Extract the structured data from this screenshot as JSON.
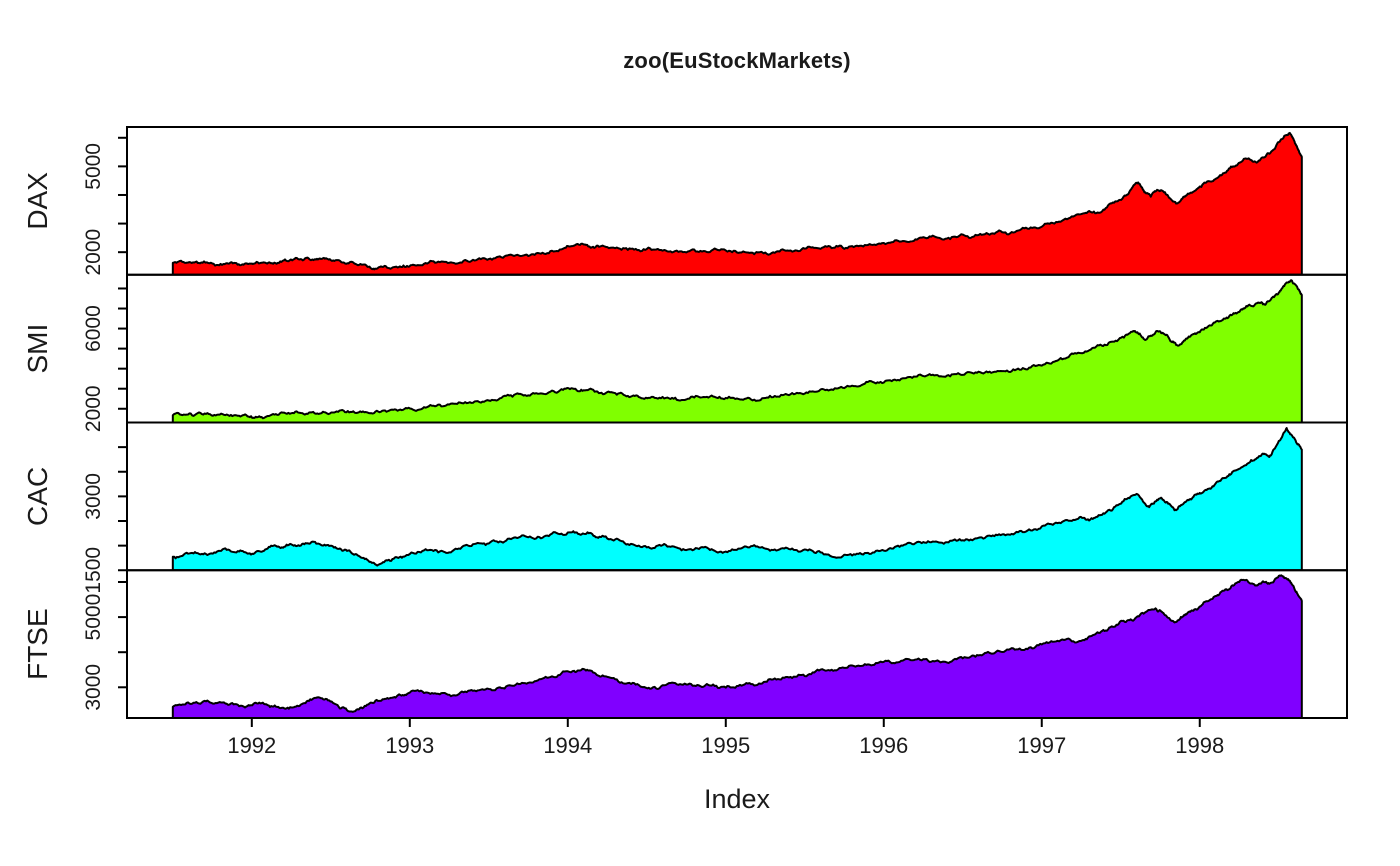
{
  "figure": {
    "background": "#FFFFFF",
    "axis_color": "#000000",
    "text_color": "#1a1a1a"
  },
  "chart_data": {
    "type": "area",
    "title": "zoo(EuStockMarkets)",
    "xlabel": "Index",
    "ylabel": "",
    "legend": "none",
    "grid": false,
    "x_ticks": [
      1992,
      1993,
      1994,
      1995,
      1996,
      1997,
      1998
    ],
    "x_range_data": [
      1991.496,
      1998.646
    ],
    "axis_expansion": 0.04,
    "panels": [
      {
        "name": "DAX",
        "color": "#FF0000",
        "ylim": [
          1211,
          6377
        ],
        "yticks": [
          2000,
          3000,
          4000,
          5000,
          6000
        ],
        "ytick_labels": [
          2000,
          5000
        ],
        "x": [
          1991.5,
          1991.56,
          1991.62,
          1991.68,
          1991.75,
          1991.82,
          1991.88,
          1991.94,
          1992.0,
          1992.06,
          1992.12,
          1992.18,
          1992.24,
          1992.3,
          1992.36,
          1992.4,
          1992.45,
          1992.5,
          1992.56,
          1992.62,
          1992.68,
          1992.74,
          1992.78,
          1992.84,
          1992.9,
          1992.96,
          1993.02,
          1993.1,
          1993.18,
          1993.26,
          1993.34,
          1993.42,
          1993.5,
          1993.58,
          1993.66,
          1993.74,
          1993.82,
          1993.9,
          1993.98,
          1994.04,
          1994.1,
          1994.16,
          1994.22,
          1994.3,
          1994.38,
          1994.46,
          1994.54,
          1994.62,
          1994.7,
          1994.78,
          1994.86,
          1994.94,
          1995.02,
          1995.1,
          1995.18,
          1995.24,
          1995.32,
          1995.4,
          1995.48,
          1995.56,
          1995.64,
          1995.72,
          1995.8,
          1995.88,
          1995.96,
          1996.04,
          1996.12,
          1996.2,
          1996.28,
          1996.36,
          1996.44,
          1996.52,
          1996.6,
          1996.68,
          1996.76,
          1996.84,
          1996.92,
          1997.0,
          1997.08,
          1997.16,
          1997.24,
          1997.3,
          1997.36,
          1997.42,
          1997.48,
          1997.54,
          1997.58,
          1997.61,
          1997.65,
          1997.69,
          1997.73,
          1997.77,
          1997.81,
          1997.85,
          1997.89,
          1997.93,
          1997.97,
          1998.01,
          1998.06,
          1998.11,
          1998.16,
          1998.21,
          1998.26,
          1998.31,
          1998.36,
          1998.41,
          1998.46,
          1998.5,
          1998.54,
          1998.57,
          1998.6,
          1998.62,
          1998.646
        ],
        "y": [
          1628,
          1660,
          1620,
          1640,
          1605,
          1585,
          1610,
          1575,
          1600,
          1630,
          1615,
          1680,
          1715,
          1745,
          1780,
          1755,
          1785,
          1720,
          1690,
          1650,
          1560,
          1490,
          1425,
          1520,
          1480,
          1535,
          1560,
          1620,
          1670,
          1645,
          1700,
          1720,
          1760,
          1820,
          1870,
          1915,
          1960,
          2050,
          2150,
          2230,
          2270,
          2190,
          2230,
          2140,
          2080,
          2030,
          2090,
          2060,
          2010,
          2070,
          2040,
          2100,
          2050,
          1990,
          1930,
          1960,
          2020,
          2050,
          2100,
          2150,
          2190,
          2230,
          2210,
          2250,
          2280,
          2330,
          2390,
          2450,
          2500,
          2480,
          2540,
          2560,
          2600,
          2650,
          2690,
          2740,
          2820,
          2890,
          3000,
          3150,
          3320,
          3440,
          3380,
          3640,
          3780,
          4010,
          4330,
          4438,
          4090,
          3940,
          4180,
          4120,
          3890,
          3700,
          3870,
          4040,
          4150,
          4280,
          4480,
          4590,
          4780,
          5000,
          5150,
          5280,
          5130,
          5320,
          5550,
          5850,
          6080,
          6170,
          5870,
          5620,
          5330
        ]
      },
      {
        "name": "SMI",
        "color": "#80FF00",
        "ylim": [
          1314,
          8685
        ],
        "yticks": [
          2000,
          3000,
          4000,
          5000,
          6000,
          7000,
          8000
        ],
        "ytick_labels": [
          2000,
          6000
        ],
        "x": [
          1991.5,
          1991.57,
          1991.64,
          1991.71,
          1991.78,
          1991.85,
          1991.92,
          1991.98,
          1992.04,
          1992.1,
          1992.17,
          1992.24,
          1992.31,
          1992.38,
          1992.45,
          1992.52,
          1992.59,
          1992.66,
          1992.73,
          1992.8,
          1992.87,
          1992.94,
          1993.01,
          1993.09,
          1993.17,
          1993.25,
          1993.33,
          1993.41,
          1993.49,
          1993.57,
          1993.65,
          1993.73,
          1993.81,
          1993.89,
          1993.97,
          1994.04,
          1994.1,
          1994.17,
          1994.24,
          1994.31,
          1994.38,
          1994.45,
          1994.52,
          1994.6,
          1994.68,
          1994.76,
          1994.84,
          1994.92,
          1995.0,
          1995.08,
          1995.16,
          1995.24,
          1995.32,
          1995.4,
          1995.48,
          1995.56,
          1995.64,
          1995.72,
          1995.8,
          1995.88,
          1995.96,
          1996.04,
          1996.12,
          1996.2,
          1996.28,
          1996.36,
          1996.44,
          1996.52,
          1996.6,
          1996.68,
          1996.76,
          1996.84,
          1996.92,
          1997.0,
          1997.08,
          1997.16,
          1997.24,
          1997.31,
          1997.38,
          1997.45,
          1997.52,
          1997.58,
          1997.62,
          1997.66,
          1997.7,
          1997.74,
          1997.78,
          1997.82,
          1997.86,
          1997.9,
          1997.94,
          1997.98,
          1998.02,
          1998.07,
          1998.12,
          1998.17,
          1998.22,
          1998.27,
          1998.32,
          1998.37,
          1998.41,
          1998.45,
          1998.49,
          1998.52,
          1998.55,
          1998.58,
          1998.61,
          1998.63,
          1998.646
        ],
        "y": [
          1678,
          1710,
          1690,
          1740,
          1700,
          1680,
          1650,
          1610,
          1590,
          1640,
          1700,
          1750,
          1790,
          1820,
          1850,
          1810,
          1830,
          1790,
          1820,
          1860,
          1910,
          1960,
          2000,
          2080,
          2150,
          2210,
          2280,
          2360,
          2430,
          2520,
          2600,
          2680,
          2750,
          2850,
          2940,
          2990,
          2920,
          2850,
          2780,
          2700,
          2640,
          2580,
          2540,
          2590,
          2550,
          2500,
          2560,
          2610,
          2540,
          2490,
          2460,
          2530,
          2600,
          2680,
          2760,
          2850,
          2950,
          3050,
          3150,
          3250,
          3320,
          3420,
          3520,
          3600,
          3680,
          3620,
          3720,
          3780,
          3850,
          3790,
          3880,
          3960,
          4050,
          4150,
          4350,
          4550,
          4780,
          4950,
          5150,
          5350,
          5550,
          5880,
          5750,
          5450,
          5650,
          5850,
          5700,
          5350,
          5150,
          5400,
          5600,
          5750,
          5950,
          6150,
          6350,
          6550,
          6750,
          6950,
          7150,
          7300,
          7200,
          7450,
          7700,
          8000,
          8300,
          8412,
          8150,
          7900,
          7680
        ]
      },
      {
        "name": "CAC",
        "color": "#00FFFF",
        "ylim": [
          1500,
          4500
        ],
        "yticks": [
          1500,
          2000,
          2500,
          3000,
          3500,
          4000
        ],
        "ytick_labels": [
          1500,
          3000
        ],
        "x": [
          1991.5,
          1991.57,
          1991.64,
          1991.71,
          1991.78,
          1991.85,
          1991.92,
          1991.98,
          1992.04,
          1992.1,
          1992.16,
          1992.22,
          1992.28,
          1992.34,
          1992.4,
          1992.46,
          1992.52,
          1992.58,
          1992.64,
          1992.7,
          1992.76,
          1992.8,
          1992.86,
          1992.92,
          1992.98,
          1993.06,
          1993.14,
          1993.22,
          1993.3,
          1993.38,
          1993.46,
          1993.54,
          1993.62,
          1993.7,
          1993.78,
          1993.86,
          1993.94,
          1994.02,
          1994.08,
          1994.14,
          1994.2,
          1994.28,
          1994.36,
          1994.44,
          1994.52,
          1994.6,
          1994.68,
          1994.76,
          1994.84,
          1994.92,
          1995.0,
          1995.08,
          1995.16,
          1995.24,
          1995.32,
          1995.4,
          1995.48,
          1995.56,
          1995.64,
          1995.72,
          1995.8,
          1995.88,
          1995.96,
          1996.04,
          1996.12,
          1996.2,
          1996.28,
          1996.36,
          1996.44,
          1996.52,
          1996.6,
          1996.68,
          1996.76,
          1996.84,
          1996.92,
          1997.0,
          1997.08,
          1997.16,
          1997.24,
          1997.3,
          1997.36,
          1997.42,
          1997.48,
          1997.54,
          1997.6,
          1997.64,
          1997.68,
          1997.72,
          1997.76,
          1997.8,
          1997.84,
          1997.88,
          1997.92,
          1997.96,
          1998.0,
          1998.05,
          1998.1,
          1998.15,
          1998.2,
          1998.25,
          1998.3,
          1998.35,
          1998.4,
          1998.44,
          1998.48,
          1998.52,
          1998.55,
          1998.58,
          1998.61,
          1998.646
        ],
        "y": [
          1773,
          1820,
          1870,
          1830,
          1880,
          1920,
          1880,
          1840,
          1890,
          1940,
          1980,
          2020,
          1990,
          2050,
          2077,
          2020,
          1960,
          1900,
          1830,
          1750,
          1650,
          1611,
          1700,
          1760,
          1810,
          1870,
          1910,
          1870,
          1930,
          1990,
          2040,
          2090,
          2140,
          2180,
          2150,
          2200,
          2240,
          2270,
          2220,
          2260,
          2180,
          2120,
          2050,
          1990,
          1950,
          2010,
          1970,
          1920,
          1960,
          1910,
          1880,
          1940,
          1990,
          1950,
          1900,
          1930,
          1890,
          1860,
          1820,
          1760,
          1800,
          1850,
          1900,
          1950,
          2000,
          2050,
          2090,
          2060,
          2110,
          2130,
          2160,
          2190,
          2230,
          2280,
          2330,
          2390,
          2450,
          2520,
          2580,
          2510,
          2620,
          2720,
          2820,
          2950,
          3050,
          2900,
          2780,
          2900,
          2960,
          2850,
          2720,
          2820,
          2920,
          2990,
          3070,
          3150,
          3260,
          3370,
          3460,
          3560,
          3660,
          3750,
          3870,
          3800,
          4000,
          4200,
          4388,
          4250,
          4100,
          3950
        ]
      },
      {
        "name": "FTSE",
        "color": "#8000FF",
        "ylim": [
          2125,
          6335
        ],
        "yticks": [
          3000,
          4000,
          5000,
          6000
        ],
        "ytick_labels": [
          3000,
          5000
        ],
        "x": [
          1991.5,
          1991.57,
          1991.64,
          1991.71,
          1991.78,
          1991.85,
          1991.92,
          1991.98,
          1992.04,
          1992.1,
          1992.16,
          1992.22,
          1992.28,
          1992.34,
          1992.4,
          1992.46,
          1992.52,
          1992.58,
          1992.64,
          1992.7,
          1992.76,
          1992.82,
          1992.88,
          1992.94,
          1993.0,
          1993.08,
          1993.16,
          1993.24,
          1993.32,
          1993.4,
          1993.48,
          1993.56,
          1993.64,
          1993.72,
          1993.8,
          1993.88,
          1993.96,
          1994.04,
          1994.1,
          1994.16,
          1994.22,
          1994.3,
          1994.38,
          1994.46,
          1994.52,
          1994.6,
          1994.68,
          1994.76,
          1994.84,
          1994.92,
          1995.0,
          1995.08,
          1995.16,
          1995.24,
          1995.32,
          1995.4,
          1995.48,
          1995.56,
          1995.64,
          1995.72,
          1995.8,
          1995.88,
          1995.96,
          1996.04,
          1996.12,
          1996.2,
          1996.28,
          1996.36,
          1996.44,
          1996.52,
          1996.6,
          1996.68,
          1996.76,
          1996.84,
          1996.92,
          1997.0,
          1997.08,
          1997.16,
          1997.24,
          1997.3,
          1997.36,
          1997.42,
          1997.48,
          1997.54,
          1997.6,
          1997.66,
          1997.72,
          1997.76,
          1997.8,
          1997.84,
          1997.88,
          1997.92,
          1997.96,
          1998.0,
          1998.05,
          1998.1,
          1998.15,
          1998.2,
          1998.25,
          1998.3,
          1998.35,
          1998.4,
          1998.44,
          1998.48,
          1998.52,
          1998.56,
          1998.59,
          1998.62,
          1998.646
        ],
        "y": [
          2444,
          2510,
          2560,
          2600,
          2550,
          2500,
          2460,
          2493,
          2540,
          2490,
          2440,
          2400,
          2450,
          2550,
          2700,
          2650,
          2540,
          2430,
          2300,
          2400,
          2560,
          2620,
          2700,
          2780,
          2850,
          2880,
          2830,
          2790,
          2850,
          2900,
          2940,
          2990,
          3050,
          3120,
          3180,
          3280,
          3400,
          3470,
          3520,
          3420,
          3340,
          3230,
          3120,
          3020,
          2960,
          3060,
          3120,
          3080,
          3030,
          3080,
          2990,
          3040,
          3090,
          3150,
          3220,
          3280,
          3350,
          3420,
          3480,
          3550,
          3620,
          3660,
          3690,
          3720,
          3760,
          3790,
          3760,
          3710,
          3780,
          3850,
          3910,
          3960,
          4010,
          4080,
          4130,
          4220,
          4300,
          4380,
          4320,
          4450,
          4550,
          4650,
          4780,
          4900,
          5000,
          5150,
          5250,
          5150,
          4980,
          4850,
          5000,
          5100,
          5180,
          5300,
          5450,
          5600,
          5750,
          5880,
          6000,
          6050,
          5900,
          6020,
          5950,
          6100,
          6179,
          6080,
          5900,
          5650,
          5460
        ]
      }
    ]
  }
}
